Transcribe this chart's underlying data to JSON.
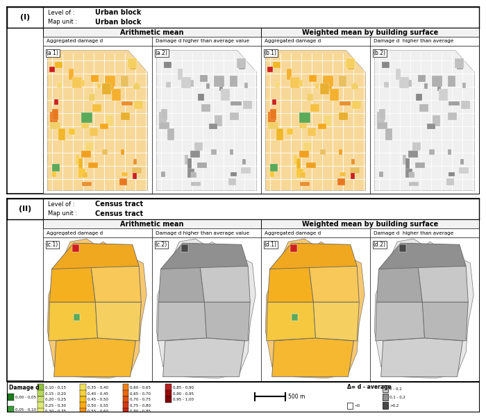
{
  "title_I": "(I)",
  "label_I_level": "Level of :",
  "label_I_mapunit": "Map unit :",
  "value_I_level": "Urban block",
  "value_I_mapunit": "Urban block",
  "title_II": "(II)",
  "label_II_level": "Level of :",
  "label_II_mapunit": "Map unit :",
  "value_II_level": "Census tract",
  "value_II_mapunit": "Census tract",
  "arith_mean": "Arithmetic mean",
  "weighted_mean": "Weighted mean by building surface",
  "col_labels": [
    "Aggregated damage d",
    "Damage d higher than average value",
    "Aggregated damage d",
    "Damage d  higher than average"
  ],
  "map_labels_I": [
    "(a.1)",
    "(a.2)",
    "(b.1)",
    "(b.2)"
  ],
  "map_labels_II": [
    "(c.1)",
    "(c.2)",
    "(d.1)",
    "(d.2)"
  ],
  "delta_label": "Δ= d - average",
  "scale_label": "500 m",
  "legend_col1_colors": [
    "#1e7a1e",
    "#3a9a3a"
  ],
  "legend_col1_labels": [
    "0,00 - 0,05",
    "0,05 - 0,10"
  ],
  "legend_col2_colors": [
    "#90c040",
    "#b8d860",
    "#cce070",
    "#dce878",
    "#e8ea78"
  ],
  "legend_col2_labels": [
    "0,10 - 0,15",
    "0,15 - 0,20",
    "0,20 - 0,25",
    "0,25 - 0,30",
    "0,30 - 0,35"
  ],
  "legend_col3_colors": [
    "#f0e060",
    "#f8d040",
    "#f8c020",
    "#f8a818",
    "#f89010"
  ],
  "legend_col3_labels": [
    "0,35 - 0,40",
    "0,40 - 0,45",
    "0,45 - 0,50",
    "0,50 - 0,55",
    "0,55 - 0,60"
  ],
  "legend_col4_colors": [
    "#f08018",
    "#e86810",
    "#e05010",
    "#d03818",
    "#c02818"
  ],
  "legend_col4_labels": [
    "0,60 - 0,65",
    "0,65 - 0,70",
    "0,70 - 0,75",
    "0,75 - 0,80",
    "0,80 - 0,85"
  ],
  "legend_col5_colors": [
    "#b82020",
    "#980808",
    "#800000"
  ],
  "legend_col5_labels": [
    "0,85 - 0,90",
    "0,90 - 0,95",
    "0,95 - 1,00"
  ],
  "delta_gray_colors": [
    "#c8c8c8",
    "#909090",
    "#484848"
  ],
  "delta_gray_labels": [
    "0 - 0,1",
    "0,1 - 0,2",
    ">0,2"
  ],
  "delta_white_label": "<0"
}
